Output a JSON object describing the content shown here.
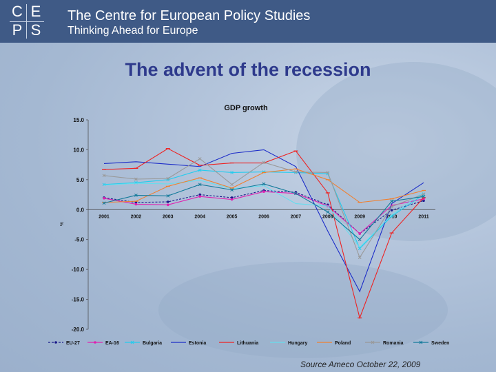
{
  "header": {
    "title": "The Centre for European Policy Studies",
    "subtitle": "Thinking Ahead for Europe",
    "logo_letters": [
      "C",
      "E",
      "P",
      "S"
    ]
  },
  "slide": {
    "title": "The advent of the recession",
    "source": "Source Ameco October 22, 2009"
  },
  "colors": {
    "header_bg": "#3f5a86",
    "title": "#2e3a8c"
  },
  "chart_data": {
    "type": "line",
    "title": "GDP growth",
    "xlabel": "",
    "ylabel": "%",
    "categories": [
      "2001",
      "2002",
      "2003",
      "2004",
      "2005",
      "2006",
      "2007",
      "2008",
      "2009",
      "2010",
      "2011"
    ],
    "yticks": [
      "15.0",
      "10.0",
      "5.0",
      "0.0",
      "-5.0",
      "-10.0",
      "-15.0",
      "-20.0"
    ],
    "ylim": [
      -20,
      15
    ],
    "grid": false,
    "legend_position": "bottom",
    "series": [
      {
        "name": "EU-27",
        "color": "#1a1a8a",
        "dash": true,
        "marker": "dot",
        "values": [
          2.0,
          1.2,
          1.3,
          2.5,
          2.0,
          3.2,
          2.9,
          0.8,
          -4.0,
          -0.1,
          1.5
        ]
      },
      {
        "name": "EA-16",
        "color": "#e020b0",
        "marker": "dot",
        "values": [
          1.9,
          0.9,
          0.8,
          2.2,
          1.7,
          3.0,
          2.7,
          0.6,
          -4.0,
          0.7,
          1.8
        ]
      },
      {
        "name": "Bulgaria",
        "color": "#22ccee",
        "marker": "x",
        "values": [
          4.2,
          4.5,
          5.0,
          6.6,
          6.2,
          6.3,
          6.2,
          6.0,
          -6.5,
          -1.1,
          2.5
        ]
      },
      {
        "name": "Estonia",
        "color": "#1c2cc8",
        "marker": "none",
        "values": [
          7.7,
          8.0,
          7.6,
          7.2,
          9.4,
          10.0,
          7.2,
          -3.6,
          -13.7,
          1.0,
          4.5
        ]
      },
      {
        "name": "Lithuania",
        "color": "#ee2222",
        "marker": "dash",
        "values": [
          6.7,
          6.9,
          10.2,
          7.4,
          7.8,
          7.8,
          9.8,
          2.8,
          -18.1,
          -3.9,
          2.0
        ]
      },
      {
        "name": "Hungary",
        "color": "#66ddee",
        "marker": "none",
        "values": [
          4.1,
          4.4,
          4.3,
          4.9,
          3.5,
          4.0,
          1.0,
          0.6,
          -6.3,
          -0.9,
          3.0
        ]
      },
      {
        "name": "Poland",
        "color": "#f08030",
        "marker": "dash",
        "values": [
          1.2,
          1.4,
          3.9,
          5.3,
          3.6,
          6.2,
          6.8,
          5.0,
          1.2,
          1.8,
          3.2
        ]
      },
      {
        "name": "Romania",
        "color": "#999999",
        "marker": "x",
        "values": [
          5.7,
          5.1,
          5.2,
          8.5,
          4.2,
          7.9,
          6.3,
          6.2,
          -8.0,
          0.5,
          2.6
        ]
      },
      {
        "name": "Sweden",
        "color": "#127a9a",
        "marker": "x",
        "values": [
          1.1,
          2.4,
          2.3,
          4.2,
          3.3,
          4.3,
          2.7,
          -0.4,
          -5.0,
          1.4,
          2.2
        ]
      }
    ]
  }
}
